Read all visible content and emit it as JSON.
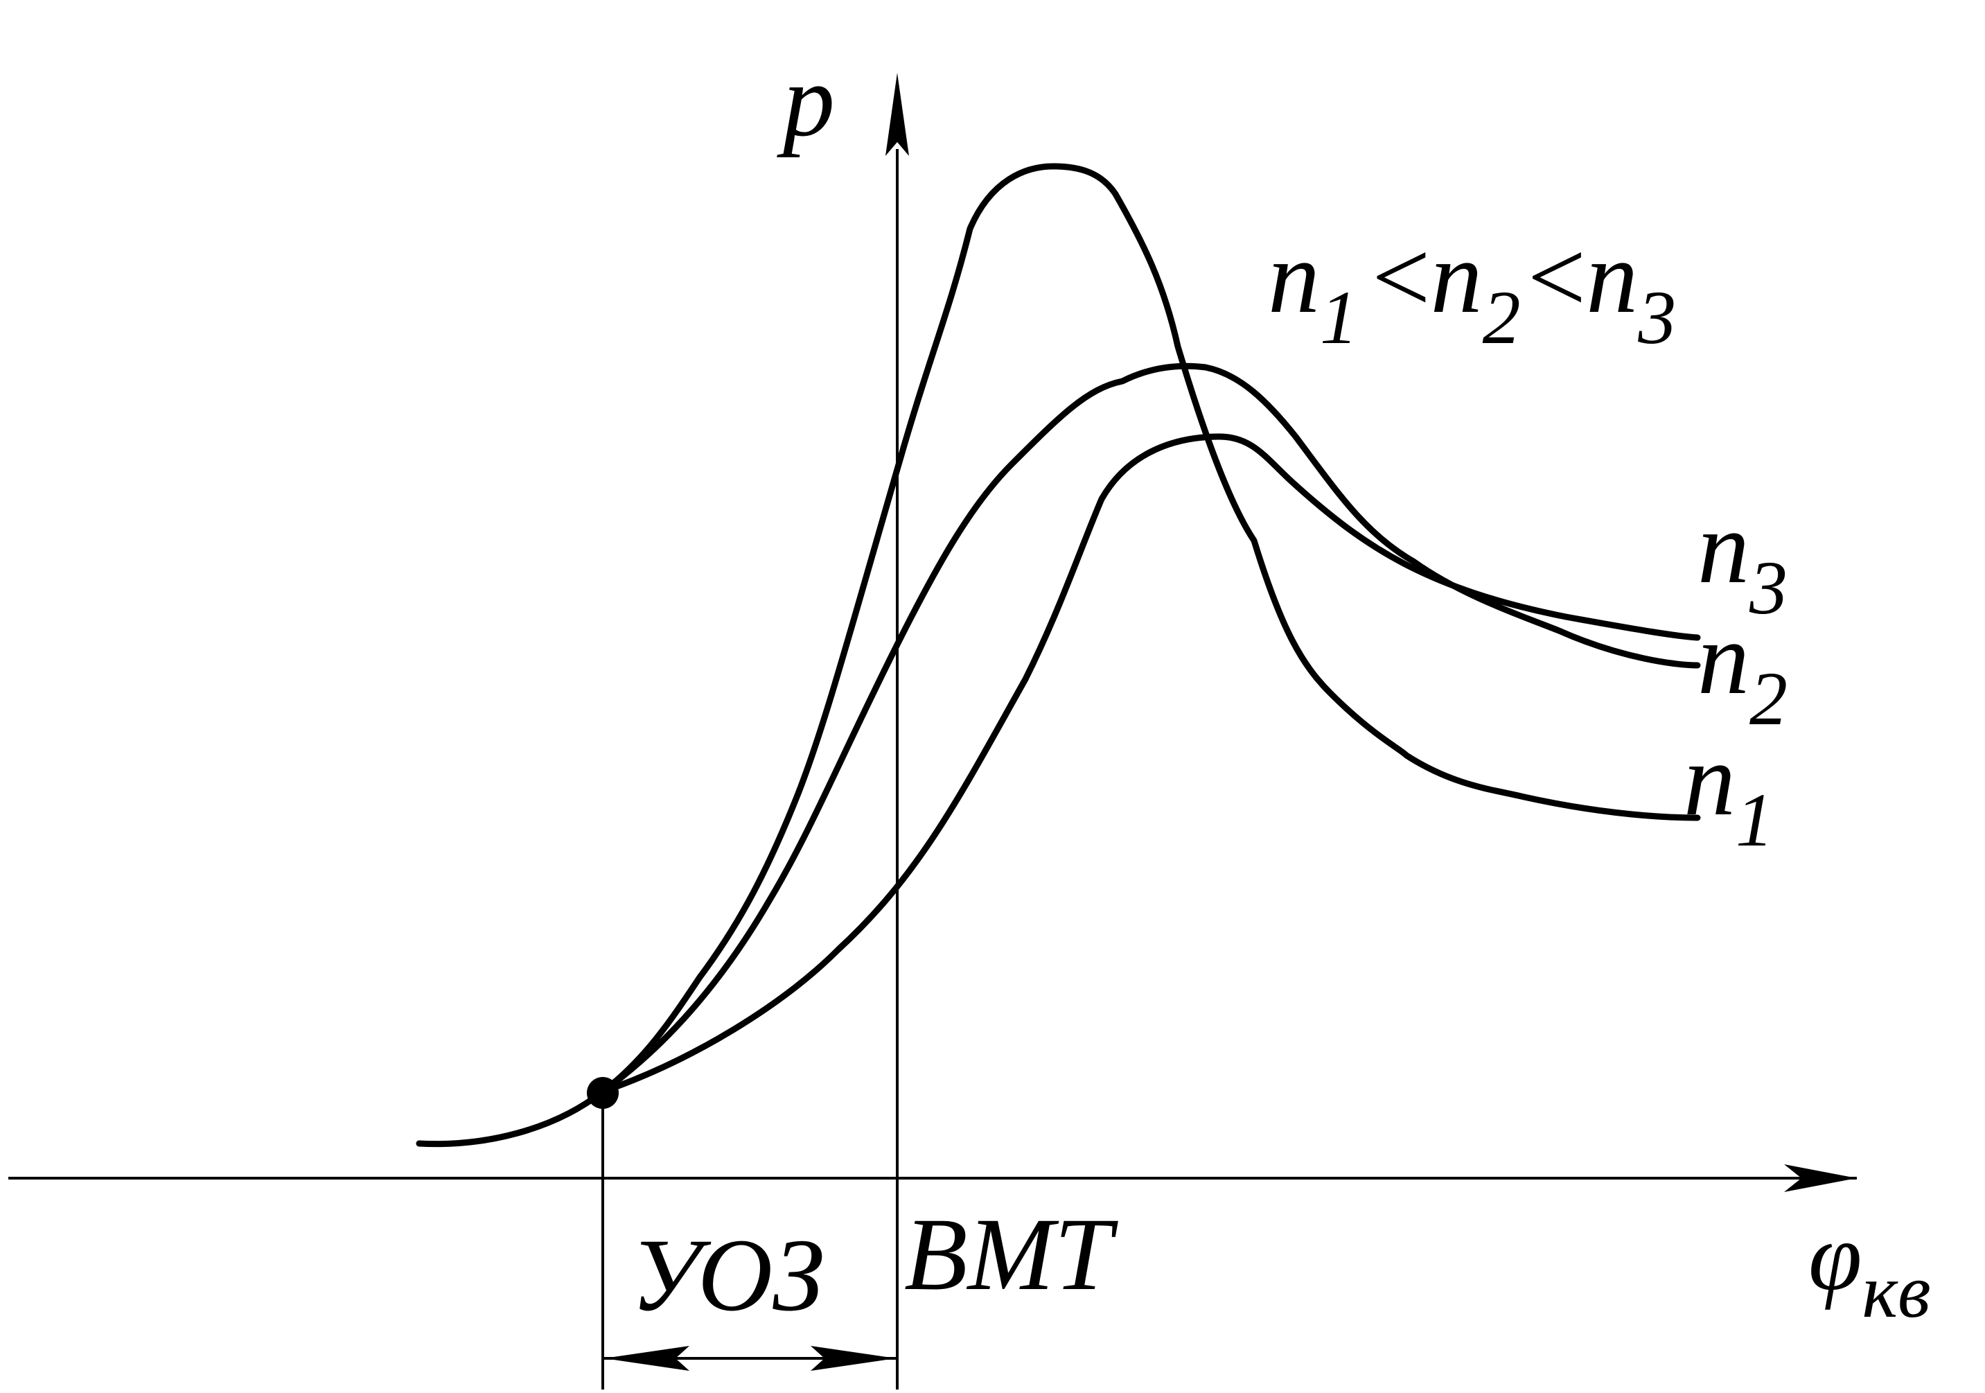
{
  "axes": {
    "y_label": "p",
    "x_label_main": "φ",
    "x_label_sub": "кв"
  },
  "relation": {
    "n1": "n",
    "n1_sub": "1",
    "lt1": "<",
    "n2": "n",
    "n2_sub": "2",
    "lt2": "<",
    "n3": "n",
    "n3_sub": "3"
  },
  "curves": [
    {
      "name": "n",
      "sub": "3"
    },
    {
      "name": "n",
      "sub": "2"
    },
    {
      "name": "n",
      "sub": "1"
    }
  ],
  "markers": {
    "advance_label": "УОЗ",
    "tdc_label": "ВМТ"
  },
  "colors": {
    "stroke": "#000000",
    "background": "#ffffff"
  }
}
